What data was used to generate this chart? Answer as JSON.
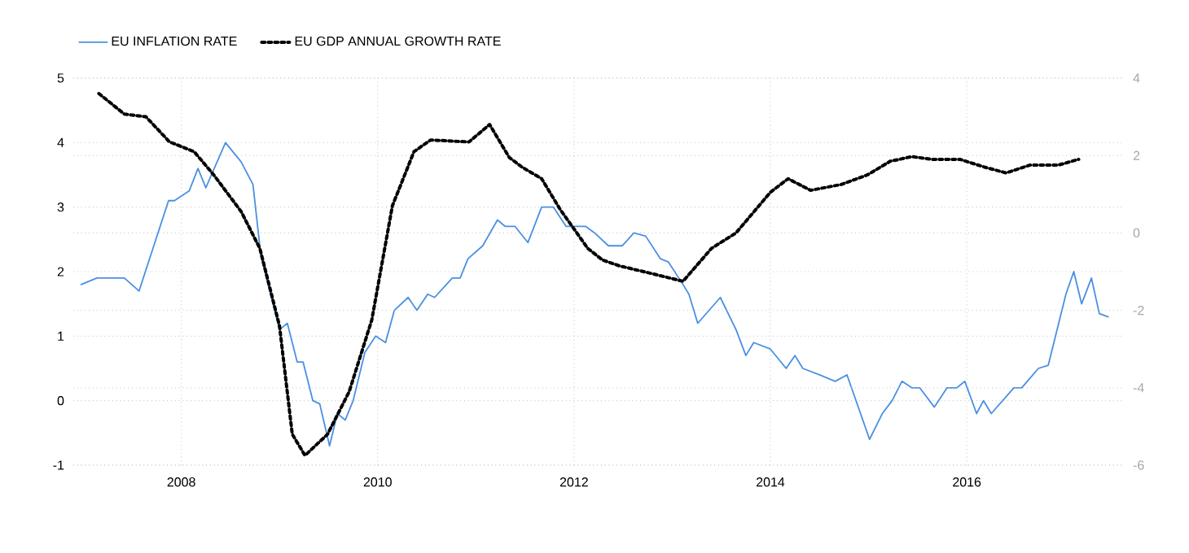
{
  "chart_data": {
    "type": "line",
    "xlim": [
      2006.9,
      2017.6
    ],
    "xticks": [
      2008,
      2010,
      2012,
      2014,
      2016
    ],
    "ylim": [
      -1,
      5
    ],
    "yticks": [
      -1,
      0,
      1,
      2,
      3,
      4,
      5
    ],
    "y2lim": [
      -6,
      4
    ],
    "y2ticks": [
      -6,
      -4,
      -2,
      0,
      2,
      4
    ],
    "grid": true,
    "legend": "top left",
    "marker": "none",
    "series": [
      {
        "name": "EU INFLATION RATE",
        "color": "#4a90e2",
        "line_style": "solid",
        "x": [
          2006.98,
          2007.14,
          2007.42,
          2007.57,
          2007.87,
          2007.93,
          2008.08,
          2008.17,
          2008.25,
          2008.45,
          2008.61,
          2008.73,
          2008.81,
          2009.0,
          2009.08,
          2009.18,
          2009.24,
          2009.34,
          2009.41,
          2009.51,
          2009.59,
          2009.67,
          2009.75,
          2009.87,
          2009.98,
          2010.08,
          2010.17,
          2010.31,
          2010.4,
          2010.51,
          2010.58,
          2010.76,
          2010.84,
          2010.92,
          2011.07,
          2011.22,
          2011.3,
          2011.4,
          2011.53,
          2011.67,
          2011.79,
          2011.92,
          2012.12,
          2012.21,
          2012.35,
          2012.49,
          2012.61,
          2012.73,
          2012.88,
          2012.96,
          2013.11,
          2013.17,
          2013.26,
          2013.49,
          2013.65,
          2013.75,
          2013.83,
          2014.0,
          2014.16,
          2014.25,
          2014.33,
          2014.5,
          2014.66,
          2014.78,
          2015.01,
          2015.14,
          2015.24,
          2015.34,
          2015.44,
          2015.52,
          2015.67,
          2015.8,
          2015.9,
          2015.98,
          2016.1,
          2016.17,
          2016.25,
          2016.48,
          2016.56,
          2016.73,
          2016.83,
          2017.01,
          2017.09,
          2017.17,
          2017.27,
          2017.35,
          2017.44
        ],
        "values": [
          1.8,
          1.9,
          1.9,
          1.7,
          3.1,
          3.1,
          3.25,
          3.6,
          3.3,
          4.0,
          3.7,
          3.35,
          2.25,
          1.1,
          1.2,
          0.6,
          0.6,
          0.0,
          -0.05,
          -0.7,
          -0.2,
          -0.3,
          0.0,
          0.75,
          1.0,
          0.9,
          1.4,
          1.6,
          1.4,
          1.65,
          1.6,
          1.9,
          1.9,
          2.2,
          2.4,
          2.8,
          2.7,
          2.7,
          2.45,
          3.0,
          3.0,
          2.7,
          2.7,
          2.6,
          2.4,
          2.4,
          2.6,
          2.55,
          2.2,
          2.15,
          1.8,
          1.65,
          1.2,
          1.6,
          1.1,
          0.7,
          0.9,
          0.8,
          0.5,
          0.7,
          0.5,
          0.4,
          0.3,
          0.4,
          -0.6,
          -0.2,
          0.0,
          0.3,
          0.2,
          0.2,
          -0.1,
          0.2,
          0.2,
          0.3,
          -0.2,
          0.0,
          -0.2,
          0.2,
          0.2,
          0.5,
          0.55,
          1.65,
          2.0,
          1.5,
          1.9,
          1.35,
          1.3
        ]
      },
      {
        "name": "EU GDP ANNUAL GROWTH RATE",
        "color": "#000000",
        "line_style": "dotted",
        "axis": "y2",
        "x": [
          2007.16,
          2007.42,
          2007.64,
          2007.88,
          2008.13,
          2008.33,
          2008.61,
          2008.8,
          2009.0,
          2009.13,
          2009.26,
          2009.49,
          2009.71,
          2009.94,
          2010.15,
          2010.37,
          2010.54,
          2010.93,
          2011.14,
          2011.34,
          2011.47,
          2011.67,
          2011.86,
          2012.14,
          2012.29,
          2012.46,
          2012.79,
          2013.11,
          2013.4,
          2013.65,
          2014.0,
          2014.18,
          2014.41,
          2014.72,
          2014.99,
          2015.22,
          2015.44,
          2015.65,
          2015.93,
          2016.18,
          2016.4,
          2016.64,
          2016.93,
          2017.14
        ],
        "values": [
          3.6,
          3.07,
          3.0,
          2.35,
          2.1,
          1.5,
          0.55,
          -0.4,
          -2.4,
          -5.2,
          -5.75,
          -5.2,
          -4.1,
          -2.25,
          0.7,
          2.1,
          2.4,
          2.35,
          2.8,
          1.95,
          1.7,
          1.4,
          0.6,
          -0.4,
          -0.7,
          -0.85,
          -1.05,
          -1.25,
          -0.4,
          0.0,
          1.05,
          1.4,
          1.1,
          1.25,
          1.5,
          1.85,
          1.97,
          1.9,
          1.9,
          1.7,
          1.55,
          1.75,
          1.75,
          1.9
        ]
      }
    ]
  }
}
